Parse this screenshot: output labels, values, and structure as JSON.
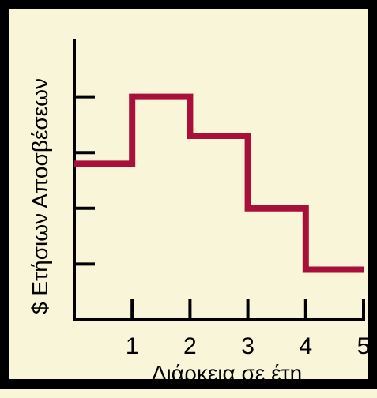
{
  "chart_data": {
    "type": "line",
    "step": true,
    "xlabel": "Διάρκεια σε έτη",
    "ylabel": "$ Ετήσιων Αποσβέσεων",
    "xticks": [
      "1",
      "2",
      "3",
      "4",
      "5"
    ],
    "xlim": [
      0,
      5
    ],
    "ylim": [
      0,
      5
    ],
    "yticks_labeled": false,
    "y_tick_positions": [
      1,
      2,
      3,
      4
    ],
    "grid": false,
    "series": [
      {
        "color": "#A8103A",
        "x": [
          0,
          1,
          1,
          2,
          2,
          3,
          3,
          4,
          4,
          5
        ],
        "y": [
          2.8,
          2.8,
          4,
          4,
          3.3,
          3.3,
          2,
          2,
          0.9,
          0.9
        ]
      }
    ]
  },
  "colors": {
    "background": "#F9F5D8",
    "frame": "#000000",
    "axis": "#000000",
    "line": "#A8103A"
  }
}
